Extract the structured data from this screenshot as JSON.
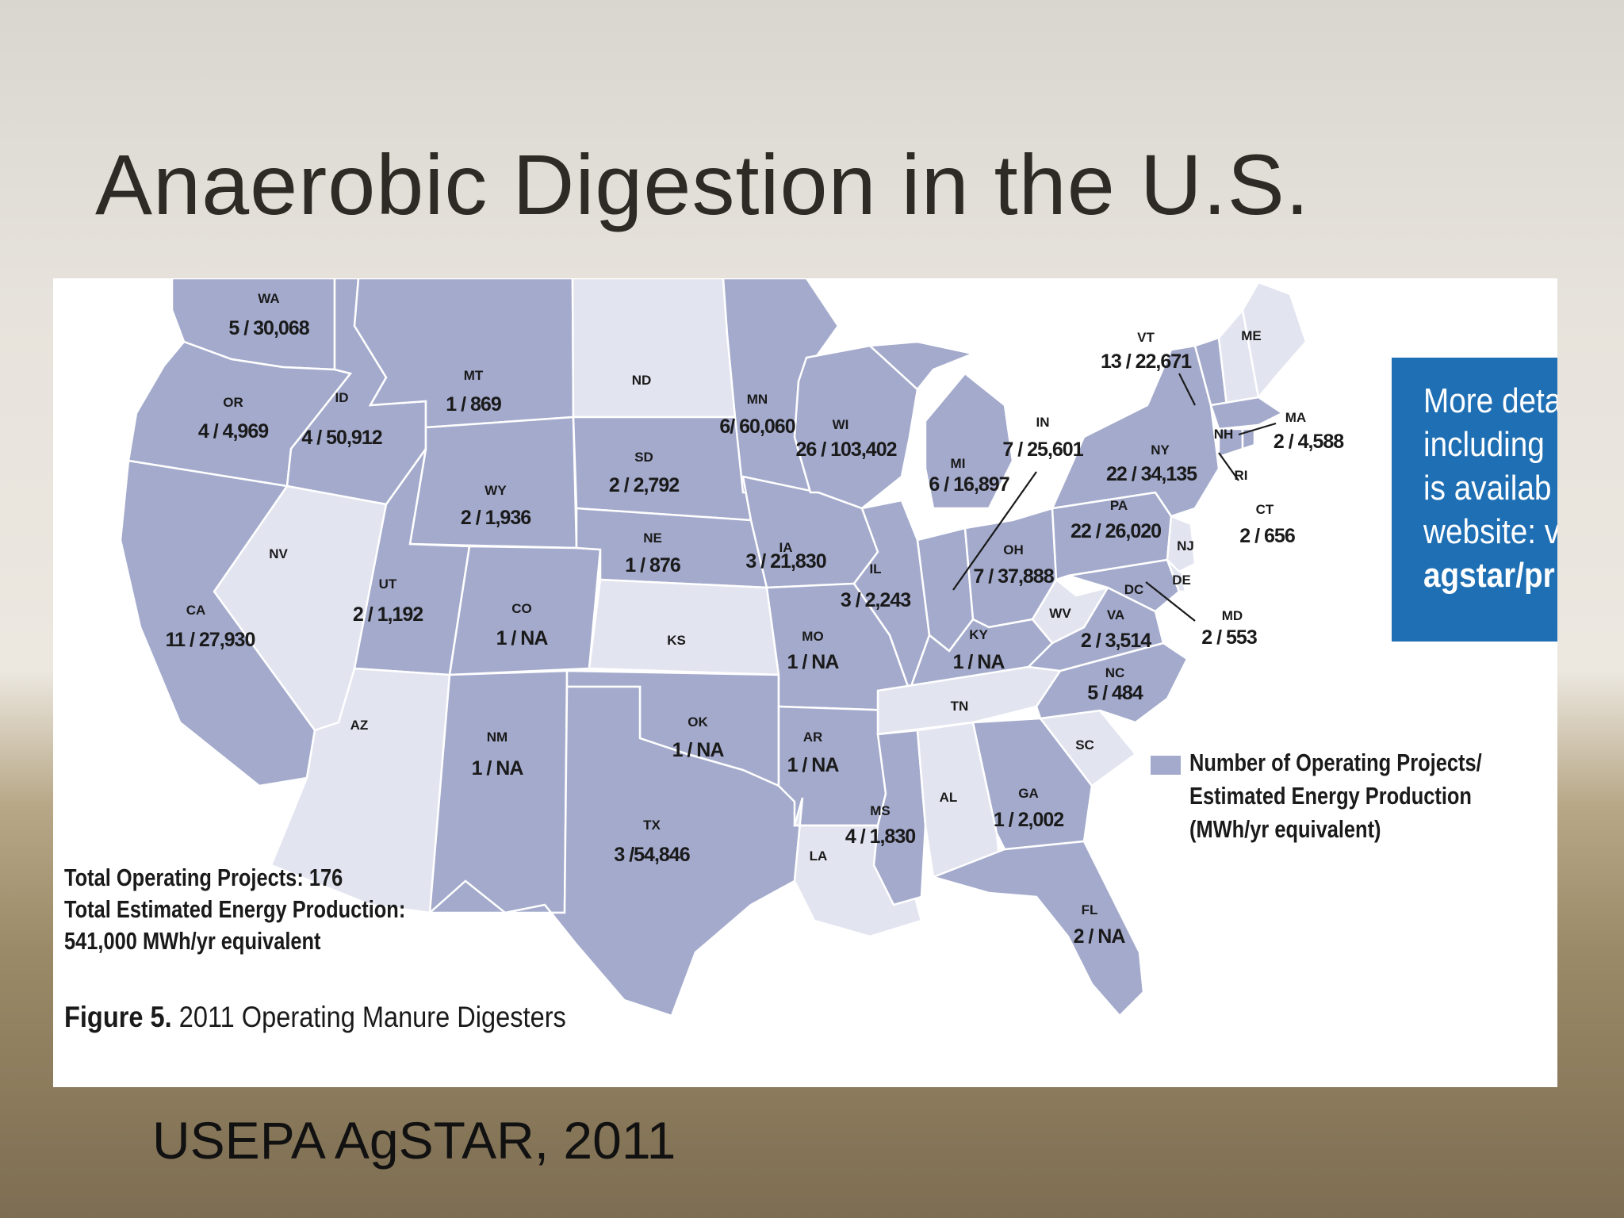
{
  "slide": {
    "title": "Anaerobic Digestion in the U.S.",
    "source": "USEPA AgSTAR, 2011"
  },
  "figure": {
    "caption_bold": "Figure 5.",
    "caption": " 2011 Operating Manure Digesters",
    "totals": [
      "Total Operating Projects: 176",
      "Total Estimated Energy Production:",
      "541,000 MWh/yr equivalent"
    ],
    "legend": [
      "Number of Operating Projects/",
      "Estimated Energy Production",
      "(MWh/yr equivalent)"
    ],
    "legend_color": "#a3aacc",
    "no_projects_color": "#e2e4f0"
  },
  "callout": {
    "lines": [
      "More deta",
      "including",
      "is availab",
      "website: v",
      "agstar/pr"
    ],
    "color": "#1f6fb4"
  },
  "states": {
    "WA": {
      "abbr": "WA",
      "value": "5 / 30,068"
    },
    "OR": {
      "abbr": "OR",
      "value": "4 / 4,969"
    },
    "ID": {
      "abbr": "ID",
      "value": "4 / 50,912"
    },
    "MT": {
      "abbr": "MT",
      "value": "1 / 869"
    },
    "ND": {
      "abbr": "ND",
      "value": ""
    },
    "MN": {
      "abbr": "MN",
      "value": "6/ 60,060"
    },
    "WI": {
      "abbr": "WI",
      "value": "26 / 103,402"
    },
    "MI": {
      "abbr": "MI",
      "value": "6 / 16,897"
    },
    "SD": {
      "abbr": "SD",
      "value": "2 / 2,792"
    },
    "WY": {
      "abbr": "WY",
      "value": "2 / 1,936"
    },
    "NE": {
      "abbr": "NE",
      "value": "1 / 876"
    },
    "IA": {
      "abbr": "IA",
      "value": "3 / 21,830"
    },
    "IL": {
      "abbr": "IL",
      "value": "3 / 2,243"
    },
    "IN": {
      "abbr": "IN",
      "value": "7 / 25,601"
    },
    "OH": {
      "abbr": "OH",
      "value": "7 / 37,888"
    },
    "NV": {
      "abbr": "NV",
      "value": ""
    },
    "UT": {
      "abbr": "UT",
      "value": "2 / 1,192"
    },
    "CO": {
      "abbr": "CO",
      "value": "1 / NA"
    },
    "CA": {
      "abbr": "CA",
      "value": "11 / 27,930"
    },
    "KS": {
      "abbr": "KS",
      "value": ""
    },
    "MO": {
      "abbr": "MO",
      "value": "1 / NA"
    },
    "KY": {
      "abbr": "KY",
      "value": "1 / NA"
    },
    "WV": {
      "abbr": "WV",
      "value": ""
    },
    "VA": {
      "abbr": "VA",
      "value": "2 / 3,514"
    },
    "NC": {
      "abbr": "NC",
      "value": "5 / 484"
    },
    "TN": {
      "abbr": "TN",
      "value": ""
    },
    "AZ": {
      "abbr": "AZ",
      "value": ""
    },
    "NM": {
      "abbr": "NM",
      "value": "1 / NA"
    },
    "OK": {
      "abbr": "OK",
      "value": "1 / NA"
    },
    "AR": {
      "abbr": "AR",
      "value": "1 / NA"
    },
    "TX": {
      "abbr": "TX",
      "value": "3 /54,846"
    },
    "LA": {
      "abbr": "LA",
      "value": ""
    },
    "MS": {
      "abbr": "MS",
      "value": "4 / 1,830"
    },
    "AL": {
      "abbr": "AL",
      "value": ""
    },
    "GA": {
      "abbr": "GA",
      "value": "1 / 2,002"
    },
    "SC": {
      "abbr": "SC",
      "value": ""
    },
    "FL": {
      "abbr": "FL",
      "value": "2 / NA"
    },
    "VT": {
      "abbr": "VT",
      "value": "13 / 22,671"
    },
    "ME": {
      "abbr": "ME",
      "value": ""
    },
    "NH": {
      "abbr": "NH",
      "value": ""
    },
    "MA": {
      "abbr": "MA",
      "value": "2 / 4,588"
    },
    "NY": {
      "abbr": "NY",
      "value": "22 / 34,135"
    },
    "RI": {
      "abbr": "RI",
      "value": ""
    },
    "PA": {
      "abbr": "PA",
      "value": "22 / 26,020"
    },
    "CT": {
      "abbr": "CT",
      "value": "2 / 656"
    },
    "NJ": {
      "abbr": "NJ",
      "value": ""
    },
    "DE": {
      "abbr": "DE",
      "value": ""
    },
    "DC": {
      "abbr": "DC",
      "value": ""
    },
    "MD": {
      "abbr": "MD",
      "value": "2 / 553"
    }
  }
}
